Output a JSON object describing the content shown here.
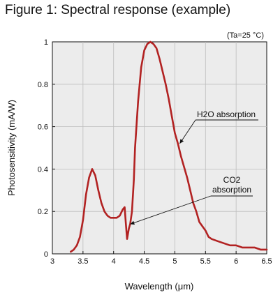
{
  "figure": {
    "title": "Figure 1: Spectral response (example)"
  },
  "chart_data": {
    "type": "line",
    "title": "Figure 1: Spectral response (example)",
    "condition": "(Ta=25 °C)",
    "xlabel": "Wavelength (μm)",
    "ylabel": "Photosensitivity (mA/W)",
    "xlim": [
      3,
      6.5
    ],
    "ylim": [
      0,
      1
    ],
    "xticks": [
      "3",
      "3.5",
      "4",
      "4.5",
      "5",
      "5.5",
      "6",
      "6.5"
    ],
    "yticks": [
      "0",
      "0.2",
      "0.4",
      "0.6",
      "0.8",
      "1"
    ],
    "grid": true,
    "line_color": "#b22222",
    "plot_background": "#ececec",
    "series": [
      {
        "x": [
          3.3,
          3.35,
          3.4,
          3.45,
          3.5,
          3.55,
          3.6,
          3.65,
          3.7,
          3.75,
          3.8,
          3.85,
          3.9,
          3.95,
          4.0,
          4.05,
          4.1,
          4.15,
          4.18,
          4.2,
          4.22,
          4.25,
          4.27,
          4.3,
          4.33,
          4.35,
          4.4,
          4.45,
          4.5,
          4.55,
          4.6,
          4.65,
          4.7,
          4.75,
          4.8,
          4.85,
          4.9,
          4.95,
          5.0,
          5.05,
          5.1,
          5.15,
          5.2,
          5.25,
          5.3,
          5.35,
          5.4,
          5.45,
          5.5,
          5.55,
          5.6,
          5.7,
          5.8,
          5.9,
          6.0,
          6.1,
          6.2,
          6.3,
          6.4,
          6.5
        ],
        "y": [
          0.01,
          0.02,
          0.04,
          0.08,
          0.16,
          0.28,
          0.36,
          0.4,
          0.37,
          0.3,
          0.24,
          0.2,
          0.18,
          0.17,
          0.17,
          0.17,
          0.18,
          0.21,
          0.22,
          0.14,
          0.07,
          0.12,
          0.14,
          0.2,
          0.35,
          0.5,
          0.72,
          0.88,
          0.96,
          0.99,
          1.0,
          0.99,
          0.97,
          0.92,
          0.86,
          0.8,
          0.73,
          0.65,
          0.57,
          0.52,
          0.46,
          0.41,
          0.36,
          0.3,
          0.24,
          0.2,
          0.15,
          0.13,
          0.11,
          0.08,
          0.07,
          0.06,
          0.05,
          0.04,
          0.04,
          0.03,
          0.03,
          0.03,
          0.02,
          0.02
        ]
      }
    ],
    "annotations": [
      {
        "lines": [
          "H2O absorption"
        ],
        "target": [
          5.08,
          0.52
        ]
      },
      {
        "lines": [
          "CO2",
          "absorption"
        ],
        "target": [
          4.27,
          0.14
        ]
      }
    ]
  }
}
